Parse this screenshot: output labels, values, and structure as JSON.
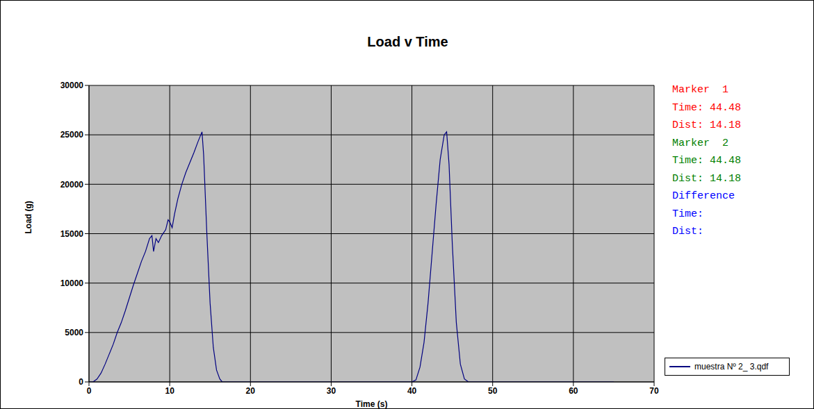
{
  "chart_data": {
    "type": "line",
    "title": "Load v Time",
    "x_label": "Time (s)",
    "y_label": "Load (g)",
    "xlim": [
      0,
      70
    ],
    "xticks": [
      0,
      10,
      20,
      30,
      40,
      50,
      60,
      70
    ],
    "ylim": [
      0,
      30000
    ],
    "yticks": [
      0,
      5000,
      10000,
      15000,
      20000,
      25000,
      30000
    ],
    "grid": true,
    "legend": "right",
    "x": [
      0,
      0.5,
      1,
      1.5,
      2,
      2.5,
      3,
      3.5,
      4,
      4.5,
      5,
      5.5,
      6,
      6.5,
      7,
      7.5,
      7.8,
      8,
      8.3,
      8.6,
      9,
      9.5,
      9.8,
      10,
      10.3,
      10.6,
      11,
      11.5,
      12,
      12.5,
      13,
      13.5,
      14,
      14.2,
      14.6,
      15,
      15.4,
      15.8,
      16.2,
      16.5,
      17,
      20,
      30,
      40,
      40.5,
      41,
      41.5,
      42,
      42.5,
      43,
      43.5,
      44,
      44.3,
      44.6,
      45,
      45.5,
      46,
      46.5,
      47,
      50,
      60,
      65
    ],
    "series": [
      {
        "name": "muestra Nº 2_ 3.qdf",
        "color": "#000080",
        "values": [
          0,
          0,
          300,
          900,
          1800,
          2800,
          3800,
          5000,
          6000,
          7200,
          8500,
          9800,
          11000,
          12200,
          13200,
          14500,
          14800,
          13200,
          14500,
          14100,
          14800,
          15400,
          16400,
          16200,
          15600,
          17000,
          18500,
          20000,
          21200,
          22200,
          23200,
          24300,
          25300,
          23000,
          15000,
          8000,
          3500,
          1200,
          300,
          0,
          0,
          0,
          0,
          0,
          200,
          1500,
          4000,
          8000,
          13000,
          18000,
          22500,
          25000,
          25300,
          22000,
          14000,
          6000,
          1800,
          300,
          0,
          0,
          0,
          0
        ]
      }
    ],
    "annotations": [
      {
        "text": "Marker  1",
        "color": "#ff0000"
      },
      {
        "text": "Time: 44.48",
        "color": "#ff0000"
      },
      {
        "text": "Dist: 14.18",
        "color": "#ff0000"
      },
      {
        "text": "Marker  2",
        "color": "#008000"
      },
      {
        "text": "Time: 44.48",
        "color": "#008000"
      },
      {
        "text": "Dist: 14.18",
        "color": "#008000"
      },
      {
        "text": "Difference",
        "color": "#0000ff"
      },
      {
        "text": "Time:",
        "color": "#0000ff"
      },
      {
        "text": "Dist:",
        "color": "#0000ff"
      }
    ]
  }
}
